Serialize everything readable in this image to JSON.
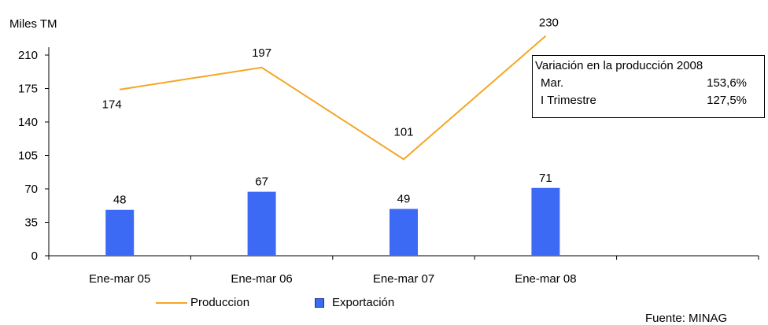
{
  "chart_data": {
    "type": "bar+line",
    "ylabel": "Miles TM",
    "ylim": [
      0,
      210
    ],
    "yticks": [
      0,
      35,
      70,
      105,
      140,
      175,
      210
    ],
    "categories": [
      "Ene-mar 05",
      "Ene-mar 06",
      "Ene-mar 07",
      "Ene-mar 08"
    ],
    "series": [
      {
        "name": "Produccion",
        "kind": "line",
        "color": "#f5a623",
        "values": [
          174,
          197,
          101,
          230
        ]
      },
      {
        "name": "Exportación",
        "kind": "bar",
        "color": "#3d6af5",
        "values": [
          48,
          67,
          49,
          71
        ]
      }
    ],
    "legend_position": "bottom"
  },
  "info_box": {
    "title": "Variación en  la producción 2008",
    "rows": [
      {
        "label": "Mar.",
        "value": "153,6%"
      },
      {
        "label": "I Trimestre",
        "value": "127,5%"
      }
    ]
  },
  "source": "Fuente: MINAG"
}
